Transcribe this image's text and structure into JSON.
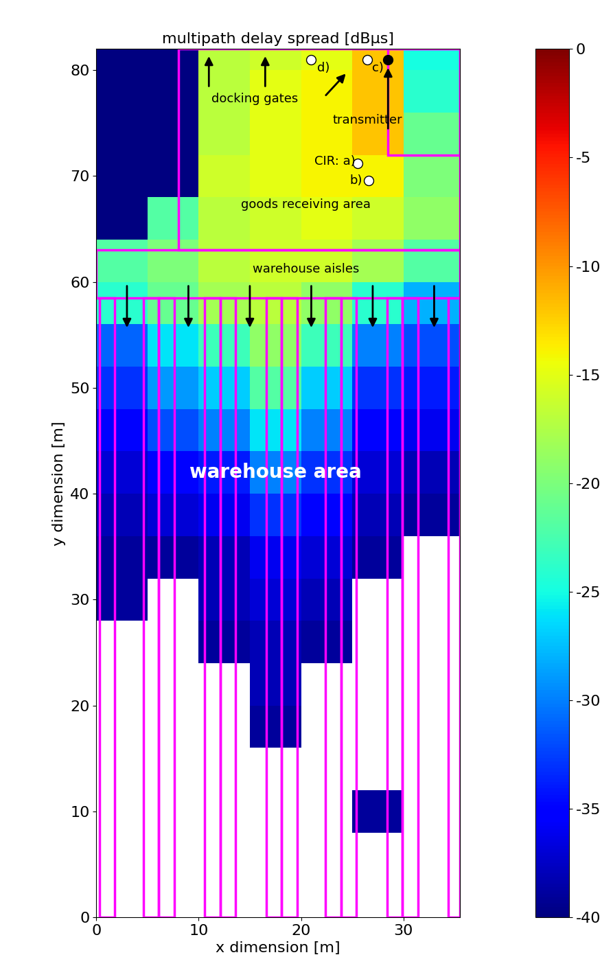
{
  "chart_data": {
    "type": "heatmap",
    "title": "multipath delay spread [dBμs]",
    "x_label": "x dimension [m]",
    "y_label": "y dimension [m]",
    "xlim": [
      0,
      35.5
    ],
    "ylim": [
      0,
      82
    ],
    "xticks": [
      0,
      10,
      20,
      30
    ],
    "yticks": [
      0,
      10,
      20,
      30,
      40,
      50,
      60,
      70,
      80
    ],
    "x_edges": [
      0,
      5,
      10,
      15,
      20,
      25,
      30,
      35.5
    ],
    "y_edges": [
      0,
      4,
      8,
      12,
      16,
      20,
      24,
      28,
      32,
      36,
      40,
      44,
      48,
      52,
      56,
      60,
      64,
      68,
      72,
      76,
      80,
      82
    ],
    "cells": [
      [
        null,
        null,
        null,
        null,
        null,
        null,
        null
      ],
      [
        null,
        null,
        null,
        null,
        null,
        null,
        null
      ],
      [
        null,
        null,
        null,
        null,
        null,
        -39,
        null
      ],
      [
        null,
        null,
        null,
        null,
        null,
        null,
        null
      ],
      [
        null,
        null,
        null,
        -39,
        null,
        null,
        null
      ],
      [
        null,
        null,
        null,
        -38,
        null,
        null,
        null
      ],
      [
        null,
        null,
        -39,
        -38,
        -39,
        null,
        null
      ],
      [
        -39,
        null,
        -38,
        -37,
        -38,
        null,
        null
      ],
      [
        -39,
        -39,
        -38,
        -36,
        -37,
        -39,
        null
      ],
      [
        -38,
        -37,
        -36,
        -33,
        -35,
        -38,
        -39
      ],
      [
        -37,
        -35,
        -34,
        -30,
        -33,
        -37,
        -38
      ],
      [
        -35,
        -32,
        -30,
        -26,
        -30,
        -35,
        -36
      ],
      [
        -33,
        -29,
        -27,
        -22,
        -27,
        -33,
        -34
      ],
      [
        -31,
        -26,
        -23,
        -19,
        -23,
        -30,
        -32
      ],
      [
        -24,
        -21,
        -18,
        -17,
        -19,
        -24,
        -28
      ],
      [
        -22,
        -20,
        -17,
        -16,
        -16,
        -18,
        -22
      ],
      [
        -40,
        -22,
        -17,
        -16,
        -15,
        -16,
        -19
      ],
      [
        -40,
        -40,
        -16,
        -15,
        -14,
        -14,
        -20
      ],
      [
        -40,
        -40,
        -17,
        -15,
        -14,
        -12,
        -21
      ],
      [
        -40,
        -40,
        -17,
        -15,
        -14,
        -12,
        -24
      ],
      [
        -40,
        -40,
        -17,
        -16,
        -15,
        -12,
        -25
      ]
    ],
    "color_range": [
      -40,
      0
    ],
    "color_ticks": [
      0,
      -5,
      -10,
      -15,
      -20,
      -25,
      -30,
      -35,
      -40
    ],
    "racks": [
      [
        0.3,
        0,
        1.8,
        58.5
      ],
      [
        4.6,
        0,
        6.1,
        58.5
      ],
      [
        6.1,
        0,
        7.6,
        58.5
      ],
      [
        10.6,
        0,
        12.1,
        58.5
      ],
      [
        12.1,
        0,
        13.6,
        58.5
      ],
      [
        16.6,
        0,
        18.1,
        58.5
      ],
      [
        18.1,
        0,
        19.6,
        58.5
      ],
      [
        22.4,
        0,
        23.9,
        58.5
      ],
      [
        23.9,
        0,
        25.4,
        58.5
      ],
      [
        28.4,
        0,
        29.9,
        58.5
      ],
      [
        29.9,
        0,
        31.4,
        58.5
      ],
      [
        34.4,
        0,
        35.5,
        58.5
      ]
    ],
    "walls": [
      [
        8,
        63,
        35.5,
        82
      ],
      [
        0,
        58.5,
        35.5,
        63
      ],
      [
        28.5,
        72,
        35.5,
        82
      ]
    ],
    "points": [
      {
        "x": 25.5,
        "y": 71.2,
        "color": "white"
      },
      {
        "x": 26.6,
        "y": 69.6,
        "color": "white"
      },
      {
        "x": 26.5,
        "y": 81,
        "color": "white"
      },
      {
        "x": 21,
        "y": 81,
        "color": "white"
      },
      {
        "x": 28.5,
        "y": 81,
        "color": "black"
      }
    ],
    "annotations": [
      {
        "text": "docking gates",
        "x": 15.5,
        "y": 77.3,
        "color": "black",
        "arrows": [
          [
            11,
            78.3,
            11,
            81.5
          ],
          [
            16.5,
            78.3,
            16.5,
            81.5
          ],
          [
            22.3,
            77.5,
            24.5,
            79.8
          ]
        ]
      },
      {
        "text": "transmitter",
        "x": 26.5,
        "y": 75.3,
        "color": "black",
        "arrows": [
          [
            28.5,
            74.3,
            28.5,
            80.4
          ]
        ]
      },
      {
        "text": "CIR: a)",
        "x": 23.3,
        "y": 71.4,
        "color": "black"
      },
      {
        "text": "b)",
        "x": 25.4,
        "y": 69.6,
        "color": "black"
      },
      {
        "text": "c)",
        "x": 27.5,
        "y": 80.2,
        "color": "black"
      },
      {
        "text": "d)",
        "x": 22.2,
        "y": 80.2,
        "color": "black"
      },
      {
        "text": "goods receiving area",
        "x": 20.5,
        "y": 67.3,
        "color": "black"
      },
      {
        "text": "warehouse aisles",
        "x": 20.5,
        "y": 61.2,
        "color": "black",
        "arrows": [
          [
            3,
            59.8,
            3,
            55.5
          ],
          [
            9,
            59.8,
            9,
            55.5
          ],
          [
            15,
            59.8,
            15,
            55.5
          ],
          [
            21,
            59.8,
            21,
            55.5
          ],
          [
            27,
            59.8,
            27,
            55.5
          ],
          [
            33,
            59.8,
            33,
            55.5
          ]
        ]
      },
      {
        "text": "warehouse area",
        "x": 17.5,
        "y": 42,
        "color": "white"
      }
    ]
  }
}
